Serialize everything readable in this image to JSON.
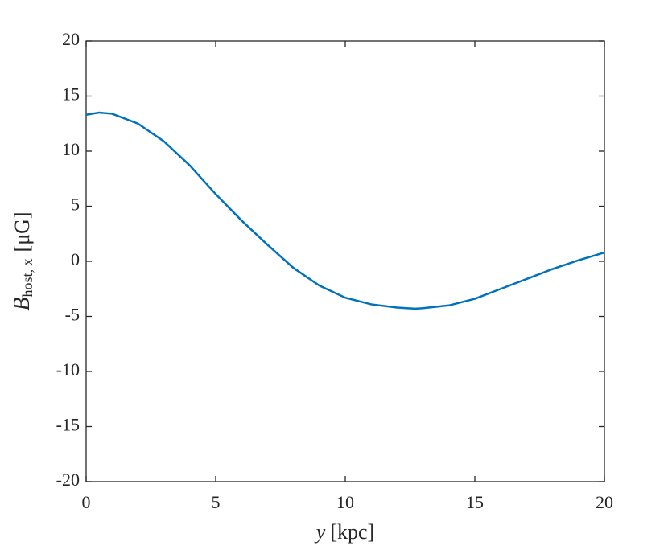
{
  "chart_data": {
    "type": "line",
    "xlabel": {
      "var": "y",
      "unit": "[kpc]"
    },
    "ylabel": {
      "main": "B",
      "sub": "host, x",
      "unit": "[μG]"
    },
    "x": [
      0,
      0.5,
      1,
      2,
      3,
      4,
      5,
      6,
      7,
      8,
      9,
      10,
      11,
      12,
      12.7,
      13,
      14,
      15,
      16,
      17,
      18,
      19,
      20
    ],
    "series": [
      {
        "color": "#0072bd",
        "values": [
          13.3,
          13.5,
          13.4,
          12.5,
          10.9,
          8.7,
          6.1,
          3.7,
          1.5,
          -0.6,
          -2.2,
          -3.3,
          -3.9,
          -4.2,
          -4.3,
          -4.25,
          -4.0,
          -3.4,
          -2.5,
          -1.6,
          -0.7,
          0.1,
          0.8
        ]
      }
    ],
    "xlim": [
      0,
      20
    ],
    "xticks": [
      0,
      5,
      10,
      15,
      20
    ],
    "ylim": [
      -20,
      20
    ],
    "yticks": [
      -20,
      -15,
      -10,
      -5,
      0,
      5,
      10,
      15,
      20
    ],
    "grid": false
  }
}
